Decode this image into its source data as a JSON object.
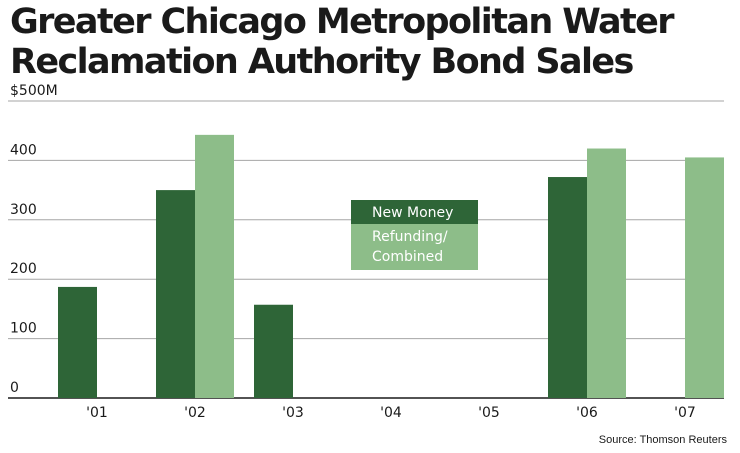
{
  "title": {
    "lines": [
      "Greater Chicago Metropolitan Water",
      "Reclamation Authority Bond Sales"
    ]
  },
  "source": "Source: Thomson Reuters",
  "colors": {
    "new_money": "#2e6537",
    "refunding": "#8dbd89",
    "grid": "#a6a6a6",
    "axis": "#1a1a1a"
  },
  "chart_data": {
    "type": "bar",
    "title": "Greater Chicago Metropolitan Water Reclamation Authority Bond Sales",
    "categories": [
      "'01",
      "'02",
      "'03",
      "'04",
      "'05",
      "'06",
      "'07"
    ],
    "series": [
      {
        "name": "New Money",
        "values": [
          187,
          350,
          157,
          0,
          0,
          372,
          0
        ]
      },
      {
        "name": "Refunding/ Combined",
        "values": [
          0,
          443,
          0,
          0,
          0,
          420,
          405
        ]
      }
    ],
    "yticks": [
      "0",
      "100",
      "200",
      "300",
      "400",
      "$500M"
    ],
    "ytick_values": [
      0,
      100,
      200,
      300,
      400,
      500
    ],
    "ylim": [
      0,
      500
    ],
    "xlabel": "",
    "ylabel": "",
    "grid": true,
    "legend": {
      "placement": "center",
      "entries": [
        {
          "lines": [
            "New Money"
          ]
        },
        {
          "lines": [
            "Refunding/",
            "Combined"
          ]
        }
      ]
    }
  }
}
